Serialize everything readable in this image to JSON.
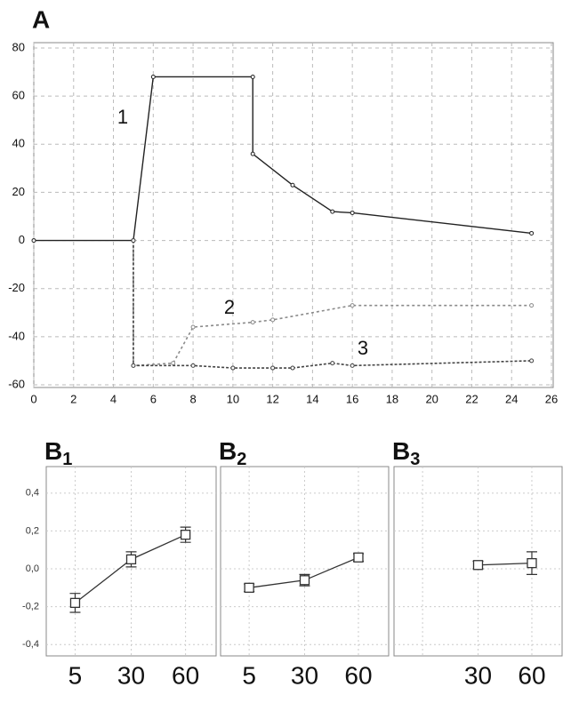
{
  "chart_data": [
    {
      "type": "line",
      "title": "A",
      "xlim": [
        0,
        26
      ],
      "xticks": [
        0,
        2,
        4,
        6,
        8,
        10,
        12,
        14,
        16,
        18,
        20,
        22,
        24,
        26
      ],
      "ylim": [
        -60,
        80
      ],
      "yticks": [
        -60,
        -40,
        -20,
        0,
        20,
        40,
        60,
        80
      ],
      "grid": true,
      "series": [
        {
          "name": "1",
          "color": "#222222",
          "x": [
            0,
            5,
            6,
            11,
            11,
            13,
            15,
            16,
            25
          ],
          "values": [
            0,
            0,
            68,
            68,
            36,
            23,
            12,
            11.5,
            3
          ]
        },
        {
          "name": "2",
          "color": "#8a8a8a",
          "x": [
            5,
            5,
            7,
            8,
            11,
            12,
            16,
            25
          ],
          "values": [
            0,
            -52,
            -51,
            -36,
            -34,
            -33,
            -27,
            -27
          ]
        },
        {
          "name": "3",
          "color": "#444444",
          "x": [
            5,
            5,
            8,
            10,
            12,
            13,
            15,
            16,
            25
          ],
          "values": [
            0,
            -52,
            -52,
            -53,
            -53,
            -53,
            -51,
            -52,
            -50
          ]
        }
      ]
    },
    {
      "type": "errorbar",
      "title": "B",
      "title_subscript": "1",
      "categories": [
        "5",
        "30",
        "60"
      ],
      "values": [
        -0.18,
        0.05,
        0.18
      ],
      "errors": [
        0.05,
        0.04,
        0.04
      ],
      "color": "#333333",
      "ylim": [
        -0.46,
        0.54
      ],
      "yticks": [
        {
          "value": -0.4,
          "label": "-0,4"
        },
        {
          "value": -0.2,
          "label": "-0,2"
        },
        {
          "value": 0,
          "label": "0,0"
        },
        {
          "value": 0.2,
          "label": "0,2"
        },
        {
          "value": 0.4,
          "label": "0,4"
        }
      ],
      "grid": true
    },
    {
      "type": "errorbar",
      "title": "B",
      "title_subscript": "2",
      "categories": [
        "5",
        "30",
        "60"
      ],
      "values": [
        -0.1,
        -0.06,
        0.06
      ],
      "errors": [
        0.02,
        0.03,
        0.02
      ],
      "color": "#333333",
      "ylim": [
        -0.46,
        0.54
      ],
      "grid": true
    },
    {
      "type": "errorbar",
      "title": "B",
      "title_subscript": "3",
      "categories": [
        null,
        "30",
        "60"
      ],
      "values": [
        null,
        0.02,
        0.03
      ],
      "errors": [
        null,
        0.02,
        0.06
      ],
      "color": "#333333",
      "ylim": [
        -0.46,
        0.54
      ],
      "grid": true
    }
  ]
}
